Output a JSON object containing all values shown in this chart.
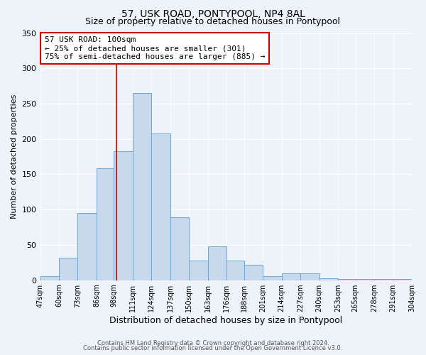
{
  "title": "57, USK ROAD, PONTYPOOL, NP4 8AL",
  "subtitle": "Size of property relative to detached houses in Pontypool",
  "xlabel": "Distribution of detached houses by size in Pontypool",
  "ylabel": "Number of detached properties",
  "bin_labels": [
    "47sqm",
    "60sqm",
    "73sqm",
    "86sqm",
    "98sqm",
    "111sqm",
    "124sqm",
    "137sqm",
    "150sqm",
    "163sqm",
    "176sqm",
    "188sqm",
    "201sqm",
    "214sqm",
    "227sqm",
    "240sqm",
    "253sqm",
    "265sqm",
    "278sqm",
    "291sqm",
    "304sqm"
  ],
  "bin_edges": [
    47,
    60,
    73,
    86,
    98,
    111,
    124,
    137,
    150,
    163,
    176,
    188,
    201,
    214,
    227,
    240,
    253,
    265,
    278,
    291,
    304
  ],
  "bar_heights": [
    6,
    32,
    95,
    158,
    183,
    265,
    208,
    89,
    28,
    48,
    28,
    22,
    6,
    10,
    10,
    3,
    2,
    2,
    2,
    2
  ],
  "bar_color": "#c8d9ee",
  "bar_edge_color": "#6aaad4",
  "vline_x": 100,
  "vline_color": "#cc0000",
  "annotation_title": "57 USK ROAD: 100sqm",
  "annotation_line1": "← 25% of detached houses are smaller (301)",
  "annotation_line2": "75% of semi-detached houses are larger (885) →",
  "box_edge_color": "#cc0000",
  "ylim": [
    0,
    350
  ],
  "yticks": [
    0,
    50,
    100,
    150,
    200,
    250,
    300,
    350
  ],
  "footer1": "Contains HM Land Registry data © Crown copyright and database right 2024.",
  "footer2": "Contains public sector information licensed under the Open Government Licence v3.0.",
  "background_color": "#eef2f9",
  "grid_color": "#ffffff",
  "title_fontsize": 10,
  "subtitle_fontsize": 9,
  "xlabel_fontsize": 9,
  "ylabel_fontsize": 8,
  "tick_fontsize": 7,
  "annotation_fontsize": 8,
  "footer_fontsize": 6
}
